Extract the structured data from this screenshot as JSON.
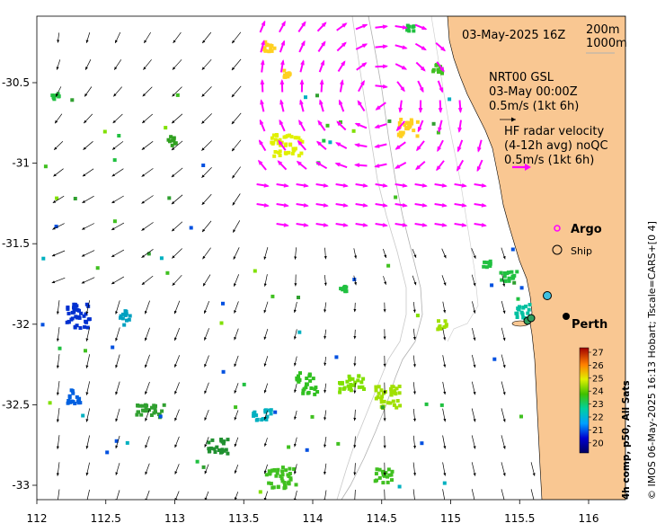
{
  "map": {
    "lon_range": [
      112,
      116.3
    ],
    "lat_range": [
      -33.1,
      -30.05
    ],
    "x_ticks": [
      "112",
      "112.5",
      "113",
      "113.5",
      "114",
      "114.5",
      "115",
      "115.5",
      "116"
    ],
    "y_ticks": [
      "-30.5",
      "-31",
      "-31.5",
      "-32",
      "-32.5",
      "-33"
    ]
  },
  "legend": {
    "date": "03-May-2025 16Z",
    "iso200": "200m",
    "iso1000": "1000m",
    "model_title": "NRT00 GSL",
    "model_time": "03-May 00:00Z",
    "model_scale": "0.5m/s (1kt 6h)",
    "radar_title": "HF radar velocity",
    "radar_avg": "(4-12h avg) noQC",
    "radar_scale": "0.5m/s (1kt 6h)",
    "argo": "Argo",
    "ship": "Ship",
    "city": "Perth"
  },
  "colorbar": {
    "ticks": [
      "27",
      "26",
      "25",
      "24",
      "23",
      "22",
      "21",
      "20"
    ],
    "title": "4h comp, p50, All Sats"
  },
  "credit": "© IMOS 06-May-2025 16:13 Hobart; Tscale=CARS+[0 4]",
  "colors": {
    "land": "#f9c792",
    "model_arrow": "#000000",
    "radar_arrow": "#ff00ff",
    "argo": "#ff00ff",
    "ship_marker": "#40c0e0"
  }
}
